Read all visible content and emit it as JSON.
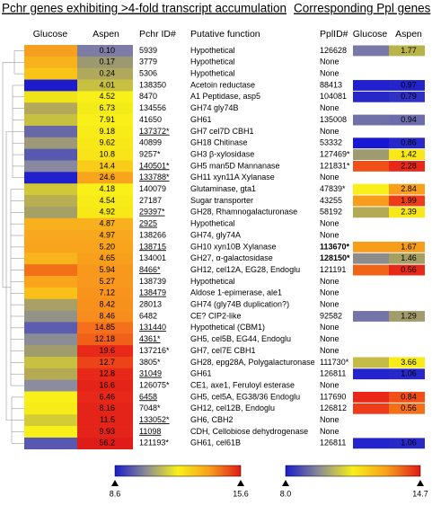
{
  "chart_data": {
    "type": "heatmap",
    "title": "Pchr genes exhibiting >4-fold transcript accumulation",
    "ppl_title": "Corresponding Ppl genes",
    "columns": {
      "glucose": "Glucose",
      "aspen": "Aspen",
      "pchr_id": "Pchr ID#",
      "function": "Putative function",
      "ppl_id": "PplID#",
      "ppl_glucose": "Glucose",
      "ppl_aspen": "Aspen"
    },
    "rows": [
      {
        "glucose_color": "#f5a020",
        "aspen_color": "#7c7ca6",
        "ratio": "0.10",
        "pchr_id": "5939",
        "function": "Hypothetical",
        "ppl_id": "126628",
        "ppl_glucose_color": "#7878a8",
        "ppl_aspen_color": "#b8b44a",
        "ppl_ratio": "1.77"
      },
      {
        "glucose_color": "#f7b21c",
        "aspen_color": "#9c9870",
        "ratio": "0.17",
        "pchr_id": "3779",
        "function": "Hypothetical",
        "ppl_id": "None"
      },
      {
        "glucose_color": "#f8c418",
        "aspen_color": "#b0a85c",
        "ratio": "0.24",
        "pchr_id": "5306",
        "function": "Hypothetical",
        "ppl_id": "None"
      },
      {
        "glucose_color": "#1c1ccc",
        "aspen_color": "#c8c040",
        "ratio": "4.01",
        "pchr_id": "138350",
        "function": "Acetoin reductase",
        "ppl_id": "88413",
        "ppl_glucose_color": "#2020d0",
        "ppl_aspen_color": "#2424cc",
        "ppl_ratio": "0.97"
      },
      {
        "glucose_color": "#f0e418",
        "aspen_color": "#f8f018",
        "ratio": "4.52",
        "pchr_id": "8470",
        "function": "A1 Peptidase, asp5",
        "ppl_id": "104081",
        "ppl_glucose_color": "#2828c8",
        "ppl_aspen_color": "#3030c4",
        "ppl_ratio": "0.79"
      },
      {
        "glucose_color": "#b4a85a",
        "aspen_color": "#f4ec18",
        "ratio": "6.73",
        "pchr_id": "134556",
        "function": "GH74 gly74B",
        "ppl_id": "None"
      },
      {
        "glucose_color": "#c8c040",
        "aspen_color": "#f8f018",
        "ratio": "7.91",
        "pchr_id": "41650",
        "function": "GH61",
        "ppl_id": "135008",
        "ppl_glucose_color": "#7070a8",
        "ppl_aspen_color": "#6c6cac",
        "ppl_ratio": "0.94"
      },
      {
        "glucose_color": "#6868a8",
        "aspen_color": "#f8ec18",
        "ratio": "9.18",
        "pchr_id": "137372*",
        "underline": true,
        "function": "GH7 cel7D CBH1",
        "ppl_id": "None"
      },
      {
        "glucose_color": "#9c9878",
        "aspen_color": "#f8e818",
        "ratio": "9.62",
        "pchr_id": "40899",
        "function": "GH18 Chitinase",
        "ppl_id": "53332",
        "ppl_glucose_color": "#1818d4",
        "ppl_aspen_color": "#2828c8",
        "ppl_ratio": "0.86"
      },
      {
        "glucose_color": "#5858b0",
        "aspen_color": "#f8e418",
        "ratio": "10.8",
        "pchr_id": "9257*",
        "function": "GH3 β-xylosidase",
        "ppl_id": "127469*",
        "ppl_glucose_color": "#a09a70",
        "ppl_aspen_color": "#f8e818",
        "ppl_ratio": "1.42"
      },
      {
        "glucose_color": "#8888a0",
        "aspen_color": "#f8cc18",
        "ratio": "14.4",
        "pchr_id": "140501*",
        "underline": true,
        "function": "GH5 man5D Mannanase",
        "ppl_id": "121831*",
        "ppl_glucose_color": "#f05018",
        "ppl_aspen_color": "#e82818",
        "ppl_ratio": "2.28"
      },
      {
        "glucose_color": "#2020cc",
        "aspen_color": "#f8a41c",
        "ratio": "24.6",
        "pchr_id": "133788*",
        "underline": true,
        "function": "GH11 xyn11A Xylanase",
        "ppl_id": "None"
      },
      {
        "glucose_color": "#d0c838",
        "aspen_color": "#f8f018",
        "ratio": "4.18",
        "pchr_id": "140079",
        "function": "Glutaminase, gta1",
        "ppl_id": "47839*",
        "ppl_glucose_color": "#f8f018",
        "ppl_aspen_color": "#f8a01c",
        "ppl_ratio": "2.84"
      },
      {
        "glucose_color": "#b8ae52",
        "aspen_color": "#f8ec18",
        "ratio": "4.54",
        "pchr_id": "27187",
        "function": "Sugar transporter",
        "ppl_id": "43255",
        "ppl_glucose_color": "#f89c1c",
        "ppl_aspen_color": "#ec3c18",
        "ppl_ratio": "1.99"
      },
      {
        "glucose_color": "#a4a068",
        "aspen_color": "#f8e818",
        "ratio": "4.92",
        "pchr_id": "29397*",
        "underline": true,
        "function": "GH28, Rhamnogalacturonase",
        "ppl_id": "58192",
        "ppl_glucose_color": "#b4aa54",
        "ppl_aspen_color": "#f8e818",
        "ppl_ratio": "2.39"
      },
      {
        "glucose_color": "#f8b01c",
        "aspen_color": "#f8b01c",
        "ratio": "4.87",
        "pchr_id": "2925",
        "underline": true,
        "function": "Hypothetical",
        "ppl_id": "None"
      },
      {
        "glucose_color": "#f8a81c",
        "aspen_color": "#f8a81c",
        "ratio": "4.97",
        "pchr_id": "138266",
        "function": "GH74, gly74A",
        "ppl_id": "None"
      },
      {
        "glucose_color": "#f8a41c",
        "aspen_color": "#f8a41c",
        "ratio": "5.20",
        "pchr_id": "138715",
        "underline": true,
        "function": "GH10 xyn10B Xylanase",
        "ppl_id": "113670*",
        "ppl_bold": true,
        "ppl_glucose_color": "#f89c1c",
        "ppl_aspen_color": "#f89c1c",
        "ppl_ratio": "1.67"
      },
      {
        "glucose_color": "#f8b41c",
        "aspen_color": "#f8a01c",
        "ratio": "4.65",
        "pchr_id": "134001",
        "function": "GH27, α-galactosidase",
        "ppl_id": "128150*",
        "ppl_bold": true,
        "ppl_glucose_color": "#8c8c8c",
        "ppl_aspen_color": "#a4a064",
        "ppl_ratio": "1.46"
      },
      {
        "glucose_color": "#f47018",
        "aspen_color": "#f8981c",
        "ratio": "5.94",
        "pchr_id": "8466*",
        "underline": true,
        "function": "GH12, cel12A, EG28, Endoglu",
        "ppl_id": "121191",
        "ppl_glucose_color": "#f06418",
        "ppl_aspen_color": "#e82818",
        "ppl_ratio": "0.56"
      },
      {
        "glucose_color": "#f8a41c",
        "aspen_color": "#f8981c",
        "ratio": "5.27",
        "pchr_id": "138739",
        "function": "Hypothetical",
        "ppl_id": "None"
      },
      {
        "glucose_color": "#f8c018",
        "aspen_color": "#f8941c",
        "ratio": "7.12",
        "pchr_id": "138479",
        "underline": true,
        "function": "Aldose 1-epimerase, ale1",
        "ppl_id": "None"
      },
      {
        "glucose_color": "#a8a064",
        "aspen_color": "#f8901c",
        "ratio": "8.42",
        "pchr_id": "28013",
        "function": "GH74 (gly74B duplication?)",
        "ppl_id": "None"
      },
      {
        "glucose_color": "#929286",
        "aspen_color": "#f88c1c",
        "ratio": "8.46",
        "pchr_id": "6482",
        "function": "CE? CIP2-like",
        "ppl_id": "92582",
        "ppl_glucose_color": "#7474a8",
        "ppl_aspen_color": "#a09c6c",
        "ppl_ratio": "1.29"
      },
      {
        "glucose_color": "#5c5cb0",
        "aspen_color": "#f4701c",
        "ratio": "14.85",
        "pchr_id": "131440",
        "underline": true,
        "function": "Hypothetical  (CBM1)",
        "ppl_id": "None"
      },
      {
        "glucose_color": "#8c8c94",
        "aspen_color": "#f06018",
        "ratio": "12.18",
        "pchr_id": "4361*",
        "underline": true,
        "function": "GH5, cel5B, EG44, Endoglu",
        "ppl_id": "None"
      },
      {
        "glucose_color": "#a09c6c",
        "aspen_color": "#e82818",
        "ratio": "19.6",
        "pchr_id": "137216*",
        "function": "GH7, cel7E CBH1",
        "ppl_id": "None"
      },
      {
        "glucose_color": "#c8c040",
        "aspen_color": "#ec4418",
        "ratio": "12.7",
        "pchr_id": "3805*",
        "function": "GH28, epg28A, Polygalacturonase",
        "ppl_id": "111730*",
        "ppl_glucose_color": "#c4bc44",
        "ppl_aspen_color": "#f8ec18",
        "ppl_ratio": "3.66"
      },
      {
        "glucose_color": "#b4aa54",
        "aspen_color": "#e82818",
        "ratio": "12.8",
        "pchr_id": "31049",
        "underline": true,
        "function": "GH61",
        "ppl_id": "126811",
        "ppl_glucose_color": "#2424cc",
        "ppl_aspen_color": "#2828c8",
        "ppl_ratio": "1.06"
      },
      {
        "glucose_color": "#8c8ca0",
        "aspen_color": "#e42418",
        "ratio": "16.6",
        "pchr_id": "126075*",
        "function": "CE1, axe1, Feruloyl esterase",
        "ppl_id": "None"
      },
      {
        "glucose_color": "#f8f018",
        "aspen_color": "#e82818",
        "ratio": "6.46",
        "pchr_id": "6458",
        "underline": true,
        "function": "GH5, cel5A, EG38/36 Endoglu",
        "ppl_id": "117690",
        "ppl_glucose_color": "#e82818",
        "ppl_aspen_color": "#f05018",
        "ppl_ratio": "0.84"
      },
      {
        "glucose_color": "#f8ec18",
        "aspen_color": "#e42418",
        "ratio": "8.16",
        "pchr_id": "7048*",
        "function": "GH12, cel12B, Endoglu",
        "ppl_id": "126812",
        "ppl_glucose_color": "#ec3c18",
        "ppl_aspen_color": "#f47018",
        "ppl_ratio": "0.56"
      },
      {
        "glucose_color": "#d4cc34",
        "aspen_color": "#e42418",
        "ratio": "11.5",
        "pchr_id": "133052*",
        "underline": true,
        "function": "GH6, CBH2",
        "ppl_id": "None"
      },
      {
        "glucose_color": "#f8f018",
        "aspen_color": "#e42418",
        "ratio": "9.93",
        "pchr_id": "11098",
        "underline": true,
        "function": "CDH, Cellobiose dehydrogenase",
        "ppl_id": "None"
      },
      {
        "glucose_color": "#5858b0",
        "aspen_color": "#e01c18",
        "ratio": "56.2",
        "pchr_id": "121193*",
        "function": "GH61, cel61B",
        "ppl_id": "126811",
        "ppl_glucose_color": "#2424cc",
        "ppl_aspen_color": "#2828c8",
        "ppl_ratio": "1.06"
      }
    ],
    "colorbars": [
      {
        "range": [
          8.6,
          15.6
        ],
        "ticks": [
          8.6,
          15.6
        ],
        "colors": [
          "#1c1ccc",
          "#8c8c94",
          "#f8f018",
          "#f8a01c",
          "#e01c18"
        ]
      },
      {
        "range": [
          8,
          14.7
        ],
        "ticks": [
          {
            "value": 8,
            "label": "8.0"
          },
          14.7
        ],
        "colors": [
          "#1c1ccc",
          "#8c8c94",
          "#f8f018",
          "#f8a01c",
          "#e01c18"
        ]
      }
    ]
  }
}
